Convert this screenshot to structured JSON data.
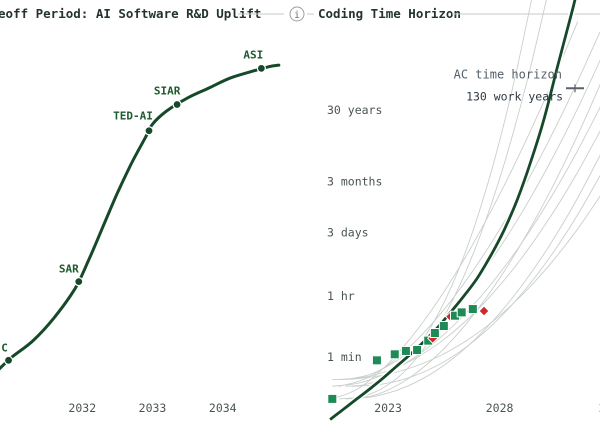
{
  "header": {
    "left_title": "eoff Period: AI Software R&D Uplift",
    "right_title": "Coding Time Horizon",
    "info_icon": "info-icon"
  },
  "chart_data": [
    {
      "type": "line",
      "title": "eoff Period: AI Software R&D Uplift",
      "xlabel": "",
      "ylabel": "",
      "x_ticks": [
        "2032",
        "2033",
        "2034"
      ],
      "xlim": [
        2030.8,
        2035.1
      ],
      "ylim": [
        0,
        100
      ],
      "y_scale": "relative",
      "series": [
        {
          "x": [
            2030.8,
            2031.0,
            2031.3,
            2031.6,
            2031.9,
            2032.1,
            2032.3,
            2032.5,
            2032.7,
            2032.9,
            2033.0,
            2033.2,
            2033.5,
            2033.8,
            2034.1,
            2034.4,
            2034.65,
            2034.8
          ],
          "y": [
            3,
            7,
            12,
            19,
            28,
            37,
            47,
            57,
            66,
            74,
            78,
            82,
            86,
            89,
            92,
            94,
            95.5,
            96
          ],
          "color": "#16492a"
        }
      ],
      "milestones": [
        {
          "label": "C",
          "x": 2030.95,
          "y": 6
        },
        {
          "label": "SAR",
          "x": 2031.95,
          "y": 30
        },
        {
          "label": "TED-AI",
          "x": 2032.95,
          "y": 76
        },
        {
          "label": "SIAR",
          "x": 2033.35,
          "y": 84
        },
        {
          "label": "ASI",
          "x": 2034.55,
          "y": 95
        }
      ],
      "grid": false,
      "legend": "none"
    },
    {
      "type": "scatter",
      "title": "Coding Time Horizon",
      "xlabel": "",
      "ylabel": "",
      "x_ticks": [
        "2023",
        "2028",
        "2"
      ],
      "xlim": [
        2019.5,
        2032.5
      ],
      "y_scale": "log",
      "y_ticks": [
        "1 min",
        "1 hr",
        "3 days",
        "3 months",
        "30 years"
      ],
      "y_tick_minutes": [
        1,
        60,
        4320,
        129600,
        15768000
      ],
      "annotation": {
        "text": "AC time horizon",
        "sub": "130 work years",
        "minutes": 68000000
      },
      "series": [
        {
          "name": "",
          "color": "#16492a",
          "x": [
            2020.4,
            2021.0,
            2021.6,
            2022.2,
            2022.8,
            2023.4,
            2024.0,
            2024.6,
            2025.2,
            2025.8,
            2026.4,
            2027.0,
            2027.6,
            2028.2,
            2028.8,
            2029.4,
            2030.0,
            2030.6,
            2031.2,
            2031.45
          ],
          "y_minutes": [
            0.015,
            0.03,
            0.06,
            0.12,
            0.25,
            0.55,
            1.2,
            2.8,
            7,
            20,
            60,
            200,
            900,
            5000,
            40000,
            500000,
            9000000,
            300000000,
            9000000000,
            40000000000
          ]
        }
      ],
      "points": [
        {
          "year": 2020.5,
          "minutes": 0.06,
          "kind": "square-green"
        },
        {
          "year": 2022.5,
          "minutes": 0.8,
          "kind": "square-green"
        },
        {
          "year": 2023.3,
          "minutes": 1.2,
          "kind": "square-green"
        },
        {
          "year": 2023.8,
          "minutes": 1.5,
          "kind": "square-green"
        },
        {
          "year": 2024.3,
          "minutes": 1.6,
          "kind": "square-green"
        },
        {
          "year": 2024.8,
          "minutes": 3,
          "kind": "square-green"
        },
        {
          "year": 2025.0,
          "minutes": 3.5,
          "kind": "diamond-red"
        },
        {
          "year": 2025.1,
          "minutes": 5,
          "kind": "square-green"
        },
        {
          "year": 2025.5,
          "minutes": 8,
          "kind": "square-green"
        },
        {
          "year": 2025.8,
          "minutes": 15,
          "kind": "diamond-red"
        },
        {
          "year": 2026.0,
          "minutes": 16,
          "kind": "square-green"
        },
        {
          "year": 2026.3,
          "minutes": 20,
          "kind": "square-green"
        },
        {
          "year": 2026.8,
          "minutes": 25,
          "kind": "square-green"
        },
        {
          "year": 2027.3,
          "minutes": 22,
          "kind": "diamond-red"
        }
      ],
      "grid": false,
      "legend": "none"
    }
  ]
}
